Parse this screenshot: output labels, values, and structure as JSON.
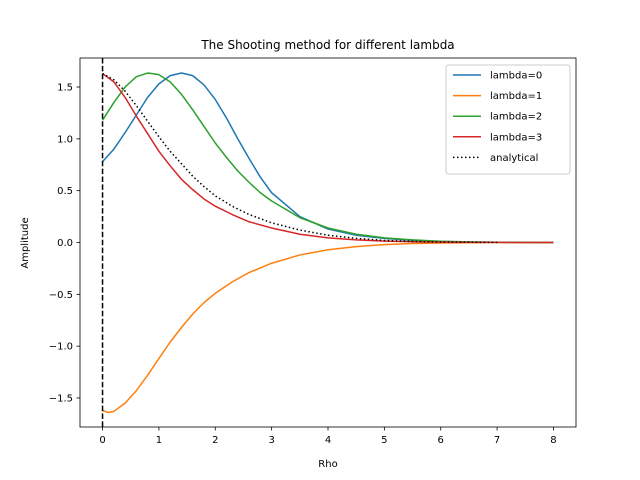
{
  "chart_data": {
    "type": "line",
    "title": "The Shooting method for different lambda",
    "xlabel": "Rho",
    "ylabel": "Amplitude",
    "xlim": [
      -0.4,
      8.4
    ],
    "ylim": [
      -1.78,
      1.78
    ],
    "xticks": [
      0,
      1,
      2,
      3,
      4,
      5,
      6,
      7,
      8
    ],
    "yticks": [
      -1.5,
      -1.0,
      -0.5,
      0.0,
      0.5,
      1.0,
      1.5
    ],
    "ytick_labels": [
      "−1.5",
      "−1.0",
      "−0.5",
      "0.0",
      "0.5",
      "1.0",
      "1.5"
    ],
    "grid": false,
    "legend_position": "top-right",
    "vline": {
      "x": 0,
      "style": "dashed",
      "color": "#000000"
    },
    "series": [
      {
        "name": "lambda=0",
        "color": "#1f77b4",
        "style": "solid",
        "x": [
          0,
          0.2,
          0.4,
          0.6,
          0.8,
          1.0,
          1.2,
          1.4,
          1.6,
          1.8,
          2.0,
          2.2,
          2.4,
          2.6,
          2.8,
          3.0,
          3.5,
          4.0,
          4.5,
          5.0,
          5.5,
          6.0,
          6.5,
          7.0,
          7.5,
          8.0
        ],
        "y": [
          0.78,
          0.9,
          1.06,
          1.23,
          1.4,
          1.53,
          1.61,
          1.635,
          1.61,
          1.52,
          1.38,
          1.2,
          1.0,
          0.81,
          0.63,
          0.48,
          0.25,
          0.13,
          0.07,
          0.04,
          0.02,
          0.01,
          0.005,
          0.002,
          0.0,
          0.0
        ]
      },
      {
        "name": "lambda=1",
        "color": "#ff7f0e",
        "style": "solid",
        "x": [
          0,
          0.1,
          0.2,
          0.4,
          0.6,
          0.8,
          1.0,
          1.2,
          1.4,
          1.6,
          1.8,
          2.0,
          2.3,
          2.6,
          3.0,
          3.5,
          4.0,
          4.5,
          5.0,
          5.5,
          6.0,
          6.5,
          7.0,
          7.5,
          8.0
        ],
        "y": [
          -1.62,
          -1.64,
          -1.63,
          -1.55,
          -1.43,
          -1.28,
          -1.12,
          -0.96,
          -0.82,
          -0.69,
          -0.58,
          -0.49,
          -0.38,
          -0.29,
          -0.2,
          -0.12,
          -0.07,
          -0.04,
          -0.02,
          -0.01,
          -0.005,
          -0.002,
          0.0,
          0.0,
          0.0
        ]
      },
      {
        "name": "lambda=2",
        "color": "#2ca02c",
        "style": "solid",
        "x": [
          0,
          0.2,
          0.4,
          0.6,
          0.8,
          1.0,
          1.2,
          1.4,
          1.6,
          1.8,
          2.0,
          2.2,
          2.4,
          2.6,
          2.8,
          3.0,
          3.5,
          4.0,
          4.5,
          5.0,
          5.5,
          6.0,
          6.5,
          7.0,
          7.5,
          8.0
        ],
        "y": [
          1.18,
          1.35,
          1.5,
          1.6,
          1.635,
          1.62,
          1.55,
          1.43,
          1.28,
          1.12,
          0.96,
          0.82,
          0.69,
          0.58,
          0.48,
          0.4,
          0.24,
          0.14,
          0.08,
          0.045,
          0.025,
          0.012,
          0.006,
          0.003,
          0.001,
          0.0
        ]
      },
      {
        "name": "lambda=3",
        "color": "#d62728",
        "style": "solid",
        "x": [
          0,
          0.2,
          0.4,
          0.6,
          0.8,
          1.0,
          1.2,
          1.4,
          1.6,
          1.8,
          2.0,
          2.3,
          2.6,
          3.0,
          3.5,
          4.0,
          4.5,
          5.0,
          5.5,
          6.0,
          6.5,
          7.0,
          7.5,
          8.0
        ],
        "y": [
          1.63,
          1.55,
          1.4,
          1.22,
          1.05,
          0.88,
          0.74,
          0.61,
          0.51,
          0.42,
          0.35,
          0.27,
          0.2,
          0.14,
          0.08,
          0.045,
          0.025,
          0.013,
          0.007,
          0.004,
          0.002,
          0.001,
          0.0,
          0.0
        ]
      },
      {
        "name": "analytical",
        "color": "#000000",
        "style": "dotted",
        "x": [
          0,
          0.2,
          0.4,
          0.6,
          0.8,
          1.0,
          1.2,
          1.4,
          1.6,
          1.8,
          2.0,
          2.3,
          2.6,
          3.0,
          3.5,
          4.0,
          4.5,
          5.0,
          5.5,
          6.0,
          6.5,
          7.0
        ],
        "y": [
          1.63,
          1.57,
          1.46,
          1.32,
          1.17,
          1.02,
          0.88,
          0.76,
          0.64,
          0.54,
          0.45,
          0.35,
          0.27,
          0.19,
          0.12,
          0.07,
          0.04,
          0.02,
          0.01,
          0.005,
          0.002,
          0.001
        ]
      }
    ]
  }
}
